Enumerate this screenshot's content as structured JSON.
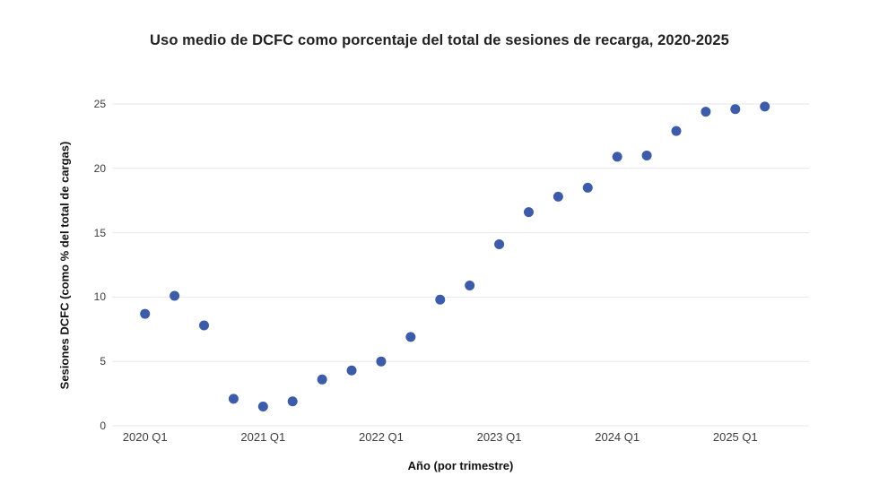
{
  "chart_data": {
    "type": "scatter",
    "title": "Uso medio de DCFC como porcentaje del total de sesiones de recarga, 2020-2025",
    "xlabel": "Año (por trimestre)",
    "ylabel": "Sesiones DCFC (como % del total de cargas)",
    "categories": [
      "2020 Q1",
      "2020 Q2",
      "2020 Q3",
      "2020 Q4",
      "2021 Q1",
      "2021 Q2",
      "2021 Q3",
      "2021 Q4",
      "2022 Q1",
      "2022 Q2",
      "2022 Q3",
      "2022 Q4",
      "2023 Q1",
      "2023 Q2",
      "2023 Q3",
      "2023 Q4",
      "2024 Q1",
      "2024 Q2",
      "2024 Q3",
      "2024 Q4",
      "2025 Q1",
      "2025 Q2"
    ],
    "values": [
      8.7,
      10.1,
      7.8,
      2.1,
      1.5,
      1.9,
      3.6,
      4.3,
      5.0,
      6.9,
      9.8,
      10.9,
      14.1,
      16.6,
      17.8,
      18.5,
      20.9,
      21.0,
      22.9,
      24.4,
      24.6,
      24.8
    ],
    "x_tick_labels": [
      "2020 Q1",
      "2021 Q1",
      "2022 Q1",
      "2023 Q1",
      "2024 Q1",
      "2025 Q1"
    ],
    "x_tick_every": 4,
    "y_ticks": [
      0,
      5,
      10,
      15,
      20,
      25
    ],
    "ylim": [
      0,
      25
    ],
    "grid": true,
    "legend": "none",
    "point_color": "#3c5ba8",
    "grid_color": "#e7e7e7",
    "tick_text_color": "#3d3d3d",
    "title_color": "#212121"
  }
}
